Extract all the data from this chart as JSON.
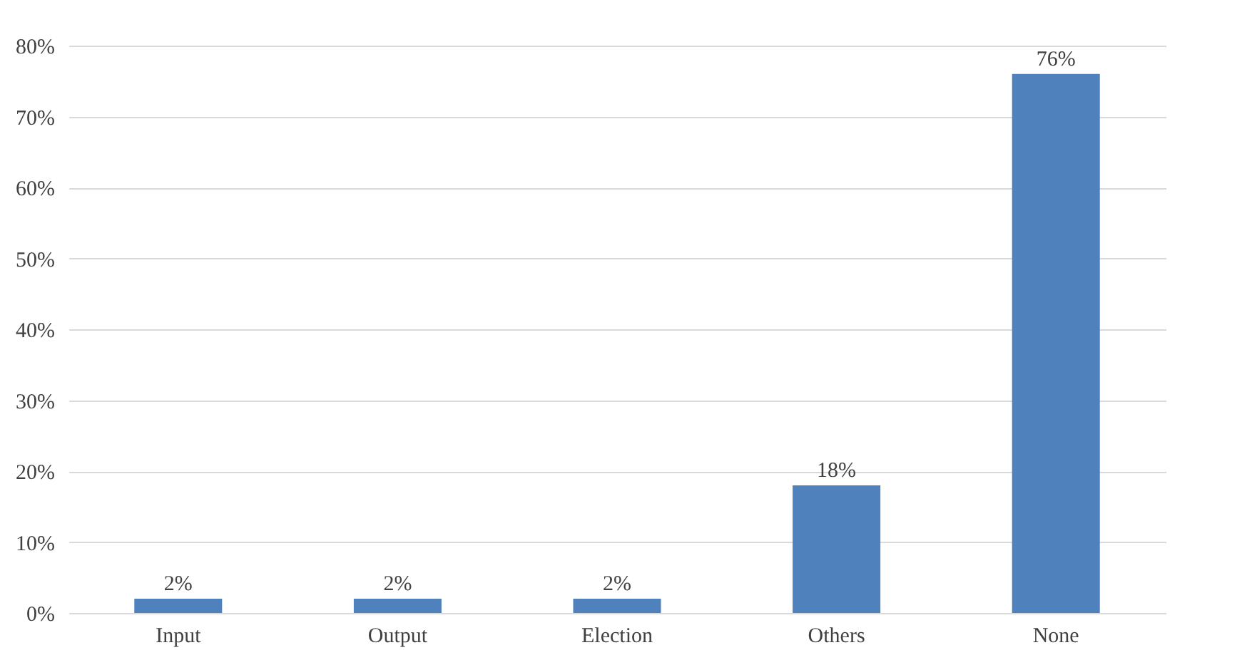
{
  "chart_data": {
    "type": "bar",
    "categories": [
      "Input",
      "Output",
      "Election",
      "Others",
      "None"
    ],
    "values": [
      2,
      2,
      2,
      18,
      76
    ],
    "value_labels": [
      "2%",
      "2%",
      "2%",
      "18%",
      "76%"
    ],
    "color": "#4f81bd",
    "ylim": [
      0,
      80
    ],
    "yticks": [
      {
        "value": 0,
        "label": "0%"
      },
      {
        "value": 10,
        "label": "10%"
      },
      {
        "value": 20,
        "label": "20%"
      },
      {
        "value": 30,
        "label": "30%"
      },
      {
        "value": 40,
        "label": "40%"
      },
      {
        "value": 50,
        "label": "50%"
      },
      {
        "value": 60,
        "label": "60%"
      },
      {
        "value": 70,
        "label": "70%"
      },
      {
        "value": 80,
        "label": "80%"
      }
    ],
    "grid": "y"
  }
}
